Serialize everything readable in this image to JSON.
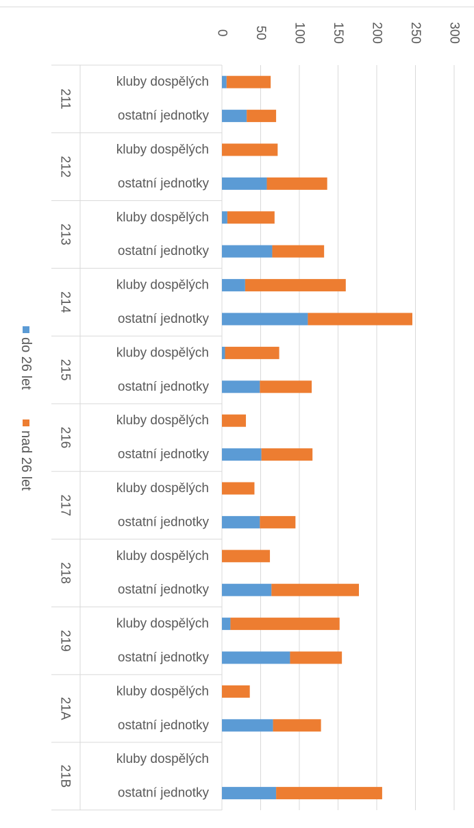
{
  "chart_data": {
    "type": "bar",
    "orientation": "horizontal-stacked",
    "title": "",
    "xlabel": "",
    "ylabel": "",
    "xlim": [
      0,
      300
    ],
    "x_ticks": [
      "0",
      "50",
      "100",
      "150",
      "200",
      "250",
      "300"
    ],
    "grid": true,
    "legend_position": "left",
    "groups": [
      {
        "label": "211",
        "categories": [
          "kluby dospělých",
          "ostatní jednotky"
        ]
      },
      {
        "label": "212",
        "categories": [
          "kluby dospělých",
          "ostatní jednotky"
        ]
      },
      {
        "label": "213",
        "categories": [
          "kluby dospělých",
          "ostatní jednotky"
        ]
      },
      {
        "label": "214",
        "categories": [
          "kluby dospělých",
          "ostatní jednotky"
        ]
      },
      {
        "label": "215",
        "categories": [
          "kluby dospělých",
          "ostatní jednotky"
        ]
      },
      {
        "label": "216",
        "categories": [
          "kluby dospělých",
          "ostatní jednotky"
        ]
      },
      {
        "label": "217",
        "categories": [
          "kluby dospělých",
          "ostatní jednotky"
        ]
      },
      {
        "label": "218",
        "categories": [
          "kluby dospělých",
          "ostatní jednotky"
        ]
      },
      {
        "label": "219",
        "categories": [
          "kluby dospělých",
          "ostatní jednotky"
        ]
      },
      {
        "label": "21A",
        "categories": [
          "kluby dospělých",
          "ostatní jednotky"
        ]
      },
      {
        "label": "21B",
        "categories": [
          "kluby dospělých",
          "ostatní jednotky"
        ]
      }
    ],
    "series": [
      {
        "name": "do 26 let",
        "color": "#5b9bd5",
        "values": [
          6,
          32,
          0,
          58,
          7,
          65,
          30,
          111,
          4,
          49,
          0,
          51,
          0,
          49,
          0,
          64,
          11,
          88,
          0,
          66,
          0,
          70
        ]
      },
      {
        "name": "nad 26 let",
        "color": "#ed7d31",
        "values": [
          57,
          38,
          72,
          78,
          61,
          67,
          130,
          135,
          70,
          67,
          31,
          66,
          42,
          46,
          62,
          113,
          141,
          67,
          36,
          62,
          0,
          137
        ]
      }
    ]
  }
}
